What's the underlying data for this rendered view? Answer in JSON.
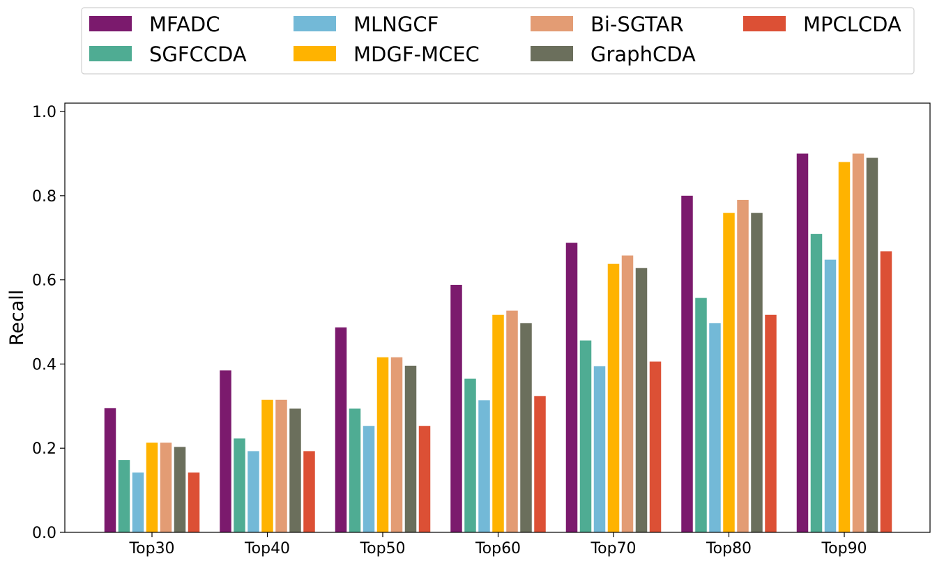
{
  "chart_data": {
    "type": "bar",
    "title": "",
    "xlabel": "",
    "ylabel": "Recall",
    "ylim": [
      0,
      1.02
    ],
    "yticks": [
      0.0,
      0.2,
      0.4,
      0.6,
      0.8,
      1.0
    ],
    "ytick_labels": [
      "0.0",
      "0.2",
      "0.4",
      "0.6",
      "0.8",
      "1.0"
    ],
    "grid": false,
    "legend_position": "top",
    "legend_columns": 4,
    "categories": [
      "Top30",
      "Top40",
      "Top50",
      "Top60",
      "Top70",
      "Top80",
      "Top90"
    ],
    "series": [
      {
        "name": "MFADC",
        "color": "#7b1a6d",
        "values": [
          0.295,
          0.385,
          0.487,
          0.588,
          0.688,
          0.8,
          0.9
        ]
      },
      {
        "name": "SGFCCDA",
        "color": "#4fac93",
        "values": [
          0.172,
          0.223,
          0.294,
          0.365,
          0.456,
          0.557,
          0.709
        ]
      },
      {
        "name": "MLNGCF",
        "color": "#73b9d7",
        "values": [
          0.142,
          0.193,
          0.253,
          0.314,
          0.395,
          0.497,
          0.648
        ]
      },
      {
        "name": "MDGF-MCEC",
        "color": "#ffb300",
        "values": [
          0.213,
          0.315,
          0.416,
          0.517,
          0.638,
          0.759,
          0.88
        ]
      },
      {
        "name": "Bi-SGTAR",
        "color": "#e39c74",
        "values": [
          0.213,
          0.315,
          0.416,
          0.527,
          0.658,
          0.79,
          0.9
        ]
      },
      {
        "name": "GraphCDA",
        "color": "#6b6f5c",
        "values": [
          0.203,
          0.294,
          0.396,
          0.497,
          0.628,
          0.759,
          0.89
        ]
      },
      {
        "name": "MPCLCDA",
        "color": "#dc5035",
        "values": [
          0.142,
          0.193,
          0.253,
          0.324,
          0.406,
          0.517,
          0.668
        ]
      }
    ]
  }
}
